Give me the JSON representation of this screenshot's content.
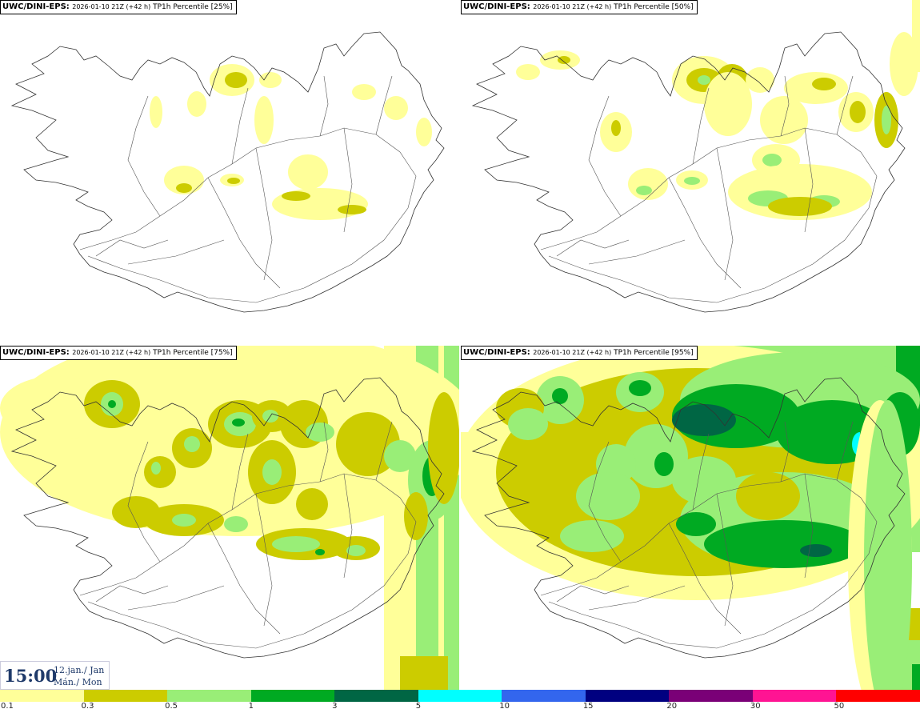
{
  "panels": [
    {
      "model": "UWC/DINI-EPS",
      "run": "2026-01-10 21Z (+42 h)",
      "field": "TP1h Percentile [25%]",
      "level": 0
    },
    {
      "model": "UWC/DINI-EPS",
      "run": "2026-01-10 21Z (+42 h)",
      "field": "TP1h Percentile [50%]",
      "level": 1
    },
    {
      "model": "UWC/DINI-EPS",
      "run": "2026-01-10 21Z (+42 h)",
      "field": "TP1h Percentile [75%]",
      "level": 2
    },
    {
      "model": "UWC/DINI-EPS",
      "run": "2026-01-10 21Z (+42 h)",
      "field": "TP1h Percentile [95%]",
      "level": 3
    }
  ],
  "valid_time": {
    "time": "15:00",
    "date_line1": "12.jan./ Jan",
    "date_line2": "Mán./ Mon"
  },
  "colorbar": {
    "labels": [
      "0.1",
      "0.3",
      "0.5",
      "1",
      "3",
      "5",
      "10",
      "15",
      "20",
      "30",
      "50"
    ],
    "colors": [
      "#ffff99",
      "#cccc00",
      "#99ee77",
      "#00aa22",
      "#006644",
      "#00ffff",
      "#3366ee",
      "#000080",
      "#7a0077",
      "#ff1493",
      "#ff0000"
    ]
  }
}
